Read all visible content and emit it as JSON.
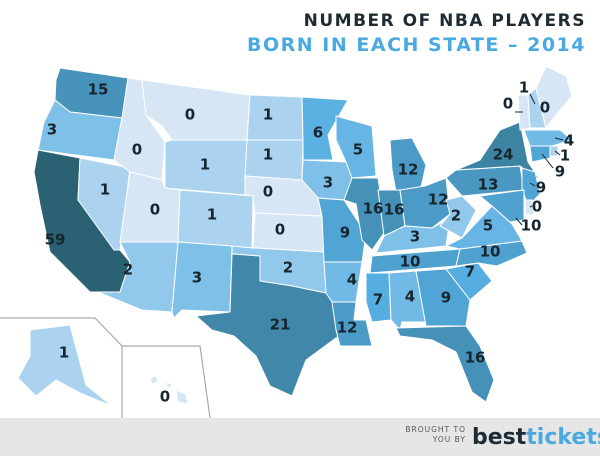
{
  "title": {
    "line1": "NUMBER OF NBA PLAYERS",
    "line2": "BORN IN EACH STATE – 2014"
  },
  "map": {
    "values": [
      15,
      3,
      59,
      1,
      0,
      0,
      1,
      0,
      1,
      2,
      3,
      1,
      1,
      0,
      0,
      2,
      21,
      6,
      3,
      9,
      4,
      12,
      5,
      16,
      12,
      16,
      12,
      3,
      10,
      7,
      4,
      9,
      16,
      7,
      10,
      5,
      2,
      13,
      24,
      0,
      1,
      0,
      4,
      1,
      9,
      9,
      0,
      10,
      1,
      0
    ]
  },
  "footer": {
    "credit_lines": [
      "BROUGHT TO",
      "YOU BY"
    ],
    "brand": [
      "best",
      "tickets"
    ]
  }
}
